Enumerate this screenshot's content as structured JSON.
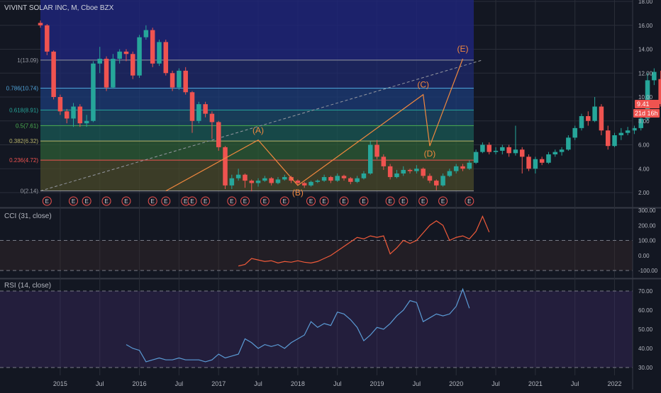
{
  "header": {
    "symbol_title": "VIVINT SOLAR INC, M, Cboe BZX"
  },
  "colors": {
    "background": "#131722",
    "up": "#26a69a",
    "down": "#ef5350",
    "wave": "#f0883e",
    "cci_line": "#f05a3a",
    "rsi_line": "#5b9bd5",
    "grid": "#2a2e39",
    "axis_text": "#b2b5be",
    "price_tag": "#ef5350"
  },
  "price_tags": {
    "last_price": "9.41",
    "countdown": "21d 16h"
  },
  "chart_data": [
    {
      "type": "candlestick",
      "pane": "price",
      "title": "VIVINT SOLAR INC, M, Cboe BZX",
      "x_ticks": [
        "2015",
        "Jul",
        "2016",
        "Jul",
        "2017",
        "Jul",
        "2018",
        "Jul",
        "2019",
        "Jul",
        "2020",
        "Jul",
        "2021",
        "Jul",
        "2022"
      ],
      "y_ticks": [
        "2.00",
        "4.00",
        "6.00",
        "8.00",
        "10.00",
        "12.00",
        "14.00",
        "16.00",
        "18.00"
      ],
      "ylim": [
        1.5,
        18.2
      ],
      "x_range_months": {
        "start": "2014-10",
        "end": "2022-06"
      },
      "start_month": "2014-10",
      "candles": [
        [
          16.2,
          16.0,
          15.8,
          16.4
        ],
        [
          16.0,
          13.8,
          13.5,
          16.1
        ],
        [
          13.8,
          10.0,
          9.8,
          13.9
        ],
        [
          10.0,
          8.8,
          8.5,
          10.2
        ],
        [
          8.8,
          8.2,
          7.8,
          9.0
        ],
        [
          8.2,
          9.2,
          7.5,
          9.5
        ],
        [
          9.2,
          7.8,
          7.5,
          9.4
        ],
        [
          7.8,
          8.0,
          7.5,
          8.5
        ],
        [
          8.0,
          12.8,
          7.9,
          13.0
        ],
        [
          12.8,
          13.2,
          12.0,
          14.2
        ],
        [
          13.2,
          10.8,
          10.5,
          13.4
        ],
        [
          10.8,
          13.2,
          10.7,
          13.6
        ],
        [
          13.2,
          13.8,
          12.8,
          14.0
        ],
        [
          13.8,
          13.6,
          13.0,
          14.0
        ],
        [
          13.6,
          11.8,
          11.5,
          13.8
        ],
        [
          11.8,
          15.0,
          11.6,
          15.2
        ],
        [
          15.0,
          15.6,
          14.8,
          16.0
        ],
        [
          15.6,
          12.8,
          12.5,
          15.8
        ],
        [
          12.8,
          14.6,
          12.6,
          14.8
        ],
        [
          14.6,
          12.0,
          11.8,
          14.8
        ],
        [
          12.0,
          10.8,
          10.5,
          12.2
        ],
        [
          10.8,
          12.2,
          10.6,
          12.4
        ],
        [
          12.2,
          10.4,
          10.2,
          12.5
        ],
        [
          10.4,
          8.0,
          7.0,
          10.5
        ],
        [
          8.0,
          9.4,
          7.8,
          9.6
        ],
        [
          9.4,
          8.6,
          8.3,
          9.6
        ],
        [
          8.6,
          7.9,
          6.5,
          8.8
        ],
        [
          7.9,
          5.8,
          5.5,
          8.0
        ],
        [
          5.8,
          2.6,
          2.3,
          5.9
        ],
        [
          2.6,
          3.2,
          2.3,
          3.5
        ],
        [
          3.2,
          3.5,
          3.0,
          4.0
        ],
        [
          3.5,
          3.0,
          2.4,
          3.6
        ],
        [
          3.0,
          2.8,
          2.1,
          3.1
        ],
        [
          2.8,
          3.0,
          2.5,
          3.2
        ],
        [
          3.0,
          3.2,
          2.9,
          3.4
        ],
        [
          3.2,
          2.8,
          2.6,
          3.3
        ],
        [
          2.8,
          3.1,
          2.7,
          3.3
        ],
        [
          3.1,
          3.3,
          3.0,
          3.5
        ],
        [
          3.3,
          3.0,
          2.8,
          3.4
        ],
        [
          3.0,
          2.8,
          2.6,
          3.1
        ],
        [
          2.8,
          2.6,
          2.4,
          2.9
        ],
        [
          2.6,
          2.9,
          2.5,
          3.0
        ],
        [
          2.9,
          3.0,
          2.8,
          3.1
        ],
        [
          3.0,
          3.3,
          2.9,
          3.5
        ],
        [
          3.3,
          3.0,
          2.8,
          3.4
        ],
        [
          3.0,
          3.4,
          2.9,
          3.6
        ],
        [
          3.4,
          3.2,
          3.0,
          3.5
        ],
        [
          3.2,
          2.9,
          2.7,
          3.3
        ],
        [
          2.9,
          3.2,
          2.8,
          3.4
        ],
        [
          3.2,
          3.6,
          3.1,
          3.8
        ],
        [
          3.6,
          6.0,
          3.5,
          6.3
        ],
        [
          6.0,
          5.0,
          4.8,
          6.4
        ],
        [
          5.0,
          4.2,
          3.9,
          5.2
        ],
        [
          4.2,
          3.3,
          3.1,
          4.4
        ],
        [
          3.3,
          3.6,
          3.2,
          3.9
        ],
        [
          3.6,
          3.9,
          3.4,
          4.2
        ],
        [
          3.9,
          3.8,
          3.6,
          4.0
        ],
        [
          3.8,
          4.0,
          3.6,
          4.3
        ],
        [
          4.0,
          3.4,
          3.2,
          4.1
        ],
        [
          3.4,
          3.0,
          2.8,
          3.6
        ],
        [
          3.0,
          2.6,
          2.2,
          3.1
        ],
        [
          2.6,
          3.4,
          2.5,
          3.6
        ],
        [
          3.4,
          3.8,
          3.3,
          4.0
        ],
        [
          3.8,
          4.2,
          3.6,
          4.4
        ],
        [
          4.2,
          4.0,
          3.8,
          4.4
        ],
        [
          4.0,
          4.5,
          3.9,
          4.7
        ],
        [
          4.5,
          5.4,
          4.4,
          5.6
        ],
        [
          5.4,
          6.0,
          5.3,
          6.2
        ],
        [
          6.0,
          5.4,
          5.2,
          6.2
        ],
        [
          5.4,
          5.5,
          5.2,
          5.8
        ],
        [
          5.5,
          5.8,
          5.2,
          6.0
        ],
        [
          5.8,
          5.3,
          5.0,
          6.0
        ],
        [
          5.3,
          5.6,
          5.1,
          7.6
        ],
        [
          5.6,
          5.0,
          3.6,
          5.8
        ],
        [
          5.0,
          4.0,
          3.8,
          5.2
        ],
        [
          4.0,
          4.8,
          3.6,
          5.0
        ],
        [
          4.8,
          4.5,
          4.3,
          5.0
        ],
        [
          4.5,
          5.2,
          4.4,
          5.4
        ],
        [
          5.2,
          5.4,
          5.0,
          5.6
        ],
        [
          5.4,
          5.6,
          5.1,
          5.8
        ],
        [
          5.6,
          6.6,
          5.5,
          6.8
        ],
        [
          6.6,
          7.4,
          6.4,
          7.6
        ],
        [
          7.4,
          8.4,
          7.2,
          8.6
        ],
        [
          8.4,
          8.0,
          7.6,
          8.8
        ],
        [
          8.0,
          9.2,
          7.9,
          10.0
        ],
        [
          9.2,
          7.2,
          6.8,
          9.4
        ],
        [
          7.2,
          5.9,
          5.6,
          7.6
        ],
        [
          5.9,
          6.8,
          5.8,
          7.0
        ],
        [
          6.8,
          7.0,
          6.4,
          7.4
        ],
        [
          7.0,
          7.2,
          6.8,
          7.5
        ],
        [
          7.2,
          7.4,
          6.9,
          7.6
        ],
        [
          7.4,
          8.2,
          7.2,
          8.4
        ],
        [
          8.2,
          11.4,
          8.0,
          12.0
        ],
        [
          11.4,
          12.1,
          11.0,
          12.4
        ],
        [
          11.5,
          9.41,
          9.2,
          12.2
        ]
      ],
      "fibonacci": [
        {
          "label": "1(13.09)",
          "value": 13.09
        },
        {
          "label": "0.786(10.74)",
          "value": 10.74
        },
        {
          "label": "0.618(8.91)",
          "value": 8.91
        },
        {
          "label": "0.5(7.61)",
          "value": 7.61
        },
        {
          "label": "0.382(6.32)",
          "value": 6.32
        },
        {
          "label": "0.236(4.72)",
          "value": 4.72
        },
        {
          "label": "0(2.14)",
          "value": 2.14
        }
      ],
      "wave_points": [
        {
          "label": "",
          "month": "2016-05",
          "value": 2.14
        },
        {
          "label": "(A)",
          "month": "2017-07",
          "value": 6.4
        },
        {
          "label": "(B)",
          "month": "2018-01",
          "value": 2.6
        },
        {
          "label": "(C)",
          "month": "2019-08",
          "value": 10.2
        },
        {
          "label": "(D)",
          "month": "2019-09",
          "value": 5.9
        },
        {
          "label": "(E)",
          "month": "2020-02",
          "value": 13.2
        }
      ],
      "trend_line": {
        "from_month": "2014-10",
        "from_value": 2.14,
        "to_month": "2020-05",
        "to_value": 13.1
      },
      "earnings_markers": {
        "label": "E",
        "months": [
          "2014-11",
          "2015-03",
          "2015-05",
          "2015-08",
          "2015-11",
          "2016-03",
          "2016-05",
          "2016-08",
          "2016-09",
          "2016-11",
          "2017-03",
          "2017-05",
          "2017-08",
          "2017-11",
          "2018-03",
          "2018-05",
          "2018-08",
          "2018-11",
          "2019-03",
          "2019-05",
          "2019-08",
          "2019-11",
          "2020-03"
        ]
      }
    },
    {
      "type": "line",
      "pane": "indicator",
      "title": "CCI (31, close)",
      "y_ticks": [
        "300.00",
        "200.00",
        "100.00",
        "0.00",
        "-100.00"
      ],
      "ylim": [
        -120,
        300
      ],
      "bands": [
        100,
        -100
      ],
      "start_month": "2017-04",
      "values": [
        -70,
        -60,
        -20,
        -30,
        -40,
        -35,
        -50,
        -40,
        -45,
        -35,
        -45,
        -50,
        -40,
        -20,
        0,
        30,
        60,
        90,
        120,
        110,
        130,
        120,
        130,
        10,
        50,
        100,
        80,
        100,
        150,
        200,
        230,
        200,
        100,
        120,
        130,
        110,
        160,
        260,
        155
      ]
    },
    {
      "type": "line",
      "pane": "indicator",
      "title": "RSI (14, close)",
      "y_ticks": [
        "70.00",
        "60.00",
        "50.00",
        "40.00",
        "30.00"
      ],
      "ylim": [
        26,
        74
      ],
      "bands": [
        70,
        30
      ],
      "start_month": "2015-11",
      "values": [
        42,
        40,
        39,
        33,
        34,
        35,
        34,
        34,
        35,
        34,
        34,
        34,
        33,
        34,
        37,
        35,
        36,
        37,
        45,
        43,
        40,
        42,
        41,
        42,
        40,
        43,
        45,
        47,
        54,
        51,
        53,
        52,
        59,
        58,
        55,
        51,
        44,
        47,
        51,
        50,
        53,
        57,
        60,
        65,
        64,
        54,
        56,
        58,
        57,
        58,
        62,
        71,
        61
      ]
    }
  ]
}
